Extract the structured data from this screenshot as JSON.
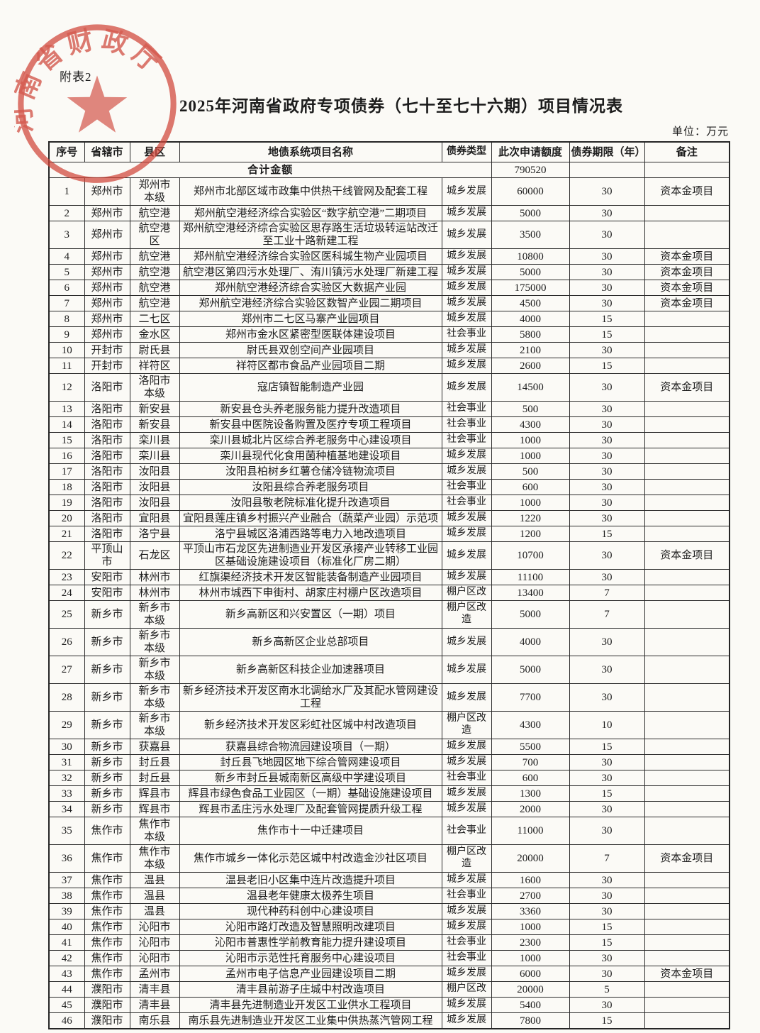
{
  "page": {
    "attachment_label": "附表2",
    "title": "2025年河南省政府专项债券（七十至七十六期）项目情况表",
    "unit_label": "单位：万元"
  },
  "seal": {
    "text": "河南省财政厅",
    "color": "#cf4438"
  },
  "table": {
    "columns": [
      "序号",
      "省辖市",
      "县区",
      "地债系统项目名称",
      "债券类型",
      "此次申请额度",
      "债券期限（年）",
      "备注"
    ],
    "total": {
      "label": "合计金额",
      "amount": "790520"
    },
    "rows": [
      [
        "1",
        "郑州市",
        "郑州市本级",
        "郑州市北部区域市政集中供热干线管网及配套工程",
        "城乡发展",
        "60000",
        "30",
        "资本金项目"
      ],
      [
        "2",
        "郑州市",
        "航空港",
        "郑州航空港经济综合实验区“数字航空港”二期项目",
        "城乡发展",
        "5000",
        "30",
        ""
      ],
      [
        "3",
        "郑州市",
        "航空港区",
        "郑州航空港经济综合实验区思存路生活垃圾转运站改迁至工业十路新建工程",
        "城乡发展",
        "3500",
        "30",
        ""
      ],
      [
        "4",
        "郑州市",
        "航空港",
        "郑州航空港经济综合实验区医科城生物产业园项目",
        "城乡发展",
        "10800",
        "30",
        "资本金项目"
      ],
      [
        "5",
        "郑州市",
        "航空港",
        "航空港区第四污水处理厂、洧川镇污水处理厂新建工程",
        "城乡发展",
        "5000",
        "30",
        "资本金项目"
      ],
      [
        "6",
        "郑州市",
        "航空港",
        "郑州航空港经济综合实验区大数据产业园",
        "城乡发展",
        "175000",
        "30",
        "资本金项目"
      ],
      [
        "7",
        "郑州市",
        "航空港",
        "郑州航空港经济综合实验区数智产业园二期项目",
        "城乡发展",
        "4500",
        "30",
        "资本金项目"
      ],
      [
        "8",
        "郑州市",
        "二七区",
        "郑州市二七区马寨产业园项目",
        "城乡发展",
        "4000",
        "15",
        ""
      ],
      [
        "9",
        "郑州市",
        "金水区",
        "郑州市金水区紧密型医联体建设项目",
        "社会事业",
        "5800",
        "15",
        ""
      ],
      [
        "10",
        "开封市",
        "尉氏县",
        "尉氏县双创空间产业园项目",
        "城乡发展",
        "2100",
        "30",
        ""
      ],
      [
        "11",
        "开封市",
        "祥符区",
        "祥符区都市食品产业园项目二期",
        "城乡发展",
        "2600",
        "15",
        ""
      ],
      [
        "12",
        "洛阳市",
        "洛阳市本级",
        "寇店镇智能制造产业园",
        "城乡发展",
        "14500",
        "30",
        "资本金项目"
      ],
      [
        "13",
        "洛阳市",
        "新安县",
        "新安县仓头养老服务能力提升改造项目",
        "社会事业",
        "500",
        "30",
        ""
      ],
      [
        "14",
        "洛阳市",
        "新安县",
        "新安县中医院设备购置及医疗专项工程项目",
        "社会事业",
        "4300",
        "30",
        ""
      ],
      [
        "15",
        "洛阳市",
        "栾川县",
        "栾川县城北片区综合养老服务中心建设项目",
        "社会事业",
        "1000",
        "30",
        ""
      ],
      [
        "16",
        "洛阳市",
        "栾川县",
        "栾川县现代化食用菌种植基地建设项目",
        "城乡发展",
        "1000",
        "30",
        ""
      ],
      [
        "17",
        "洛阳市",
        "汝阳县",
        "汝阳县柏树乡红薯仓储冷链物流项目",
        "城乡发展",
        "500",
        "30",
        ""
      ],
      [
        "18",
        "洛阳市",
        "汝阳县",
        "汝阳县综合养老服务项目",
        "社会事业",
        "600",
        "30",
        ""
      ],
      [
        "19",
        "洛阳市",
        "汝阳县",
        "汝阳县敬老院标准化提升改造项目",
        "社会事业",
        "1000",
        "30",
        ""
      ],
      [
        "20",
        "洛阳市",
        "宜阳县",
        "宜阳县莲庄镇乡村振兴产业融合（蔬菜产业园）示范项",
        "城乡发展",
        "1220",
        "30",
        ""
      ],
      [
        "21",
        "洛阳市",
        "洛宁县",
        "洛宁县城区洛浦西路等电力入地改造项目",
        "城乡发展",
        "1200",
        "15",
        ""
      ],
      [
        "22",
        "平顶山市",
        "石龙区",
        "平顶山市石龙区先进制造业开发区承接产业转移工业园区基础设施建设项目（标准化厂房二期）",
        "城乡发展",
        "10700",
        "30",
        "资本金项目"
      ],
      [
        "23",
        "安阳市",
        "林州市",
        "红旗渠经济技术开发区智能装备制造产业园项目",
        "城乡发展",
        "11100",
        "30",
        ""
      ],
      [
        "24",
        "安阳市",
        "林州市",
        "林州市城西下申街村、胡家庄村棚户区改造项目",
        "棚户区改",
        "13400",
        "7",
        ""
      ],
      [
        "25",
        "新乡市",
        "新乡市本级",
        "新乡高新区和兴安置区（一期）项目",
        "棚户区改造",
        "5000",
        "7",
        ""
      ],
      [
        "26",
        "新乡市",
        "新乡市本级",
        "新乡高新区企业总部项目",
        "城乡发展",
        "4000",
        "30",
        ""
      ],
      [
        "27",
        "新乡市",
        "新乡市本级",
        "新乡高新区科技企业加速器项目",
        "城乡发展",
        "5000",
        "30",
        ""
      ],
      [
        "28",
        "新乡市",
        "新乡市本级",
        "新乡经济技术开发区南水北调给水厂及其配水管网建设工程",
        "城乡发展",
        "7700",
        "30",
        ""
      ],
      [
        "29",
        "新乡市",
        "新乡市本级",
        "新乡经济技术开发区彩虹社区城中村改造项目",
        "棚户区改造",
        "4300",
        "10",
        ""
      ],
      [
        "30",
        "新乡市",
        "获嘉县",
        "获嘉县综合物流园建设项目（一期）",
        "城乡发展",
        "5500",
        "15",
        ""
      ],
      [
        "31",
        "新乡市",
        "封丘县",
        "封丘县飞地园区地下综合管网建设项目",
        "城乡发展",
        "700",
        "30",
        ""
      ],
      [
        "32",
        "新乡市",
        "封丘县",
        "新乡市封丘县城南新区高级中学建设项目",
        "社会事业",
        "600",
        "30",
        ""
      ],
      [
        "33",
        "新乡市",
        "辉县市",
        "辉县市绿色食品工业园区（一期）基础设施建设项目",
        "城乡发展",
        "1300",
        "15",
        ""
      ],
      [
        "34",
        "新乡市",
        "辉县市",
        "辉县市孟庄污水处理厂及配套管网提质升级工程",
        "城乡发展",
        "2000",
        "30",
        ""
      ],
      [
        "35",
        "焦作市",
        "焦作市本级",
        "焦作市十一中迁建项目",
        "社会事业",
        "11000",
        "30",
        ""
      ],
      [
        "36",
        "焦作市",
        "焦作市本级",
        "焦作市城乡一体化示范区城中村改造金沙社区项目",
        "棚户区改造",
        "20000",
        "7",
        "资本金项目"
      ],
      [
        "37",
        "焦作市",
        "温县",
        "温县老旧小区集中连片改造提升项目",
        "城乡发展",
        "1600",
        "30",
        ""
      ],
      [
        "38",
        "焦作市",
        "温县",
        "温县老年健康太极养生项目",
        "社会事业",
        "2700",
        "30",
        ""
      ],
      [
        "39",
        "焦作市",
        "温县",
        "现代种药科创中心建设项目",
        "城乡发展",
        "3360",
        "30",
        ""
      ],
      [
        "40",
        "焦作市",
        "沁阳市",
        "沁阳市路灯改造及智慧照明改建项目",
        "城乡发展",
        "1000",
        "15",
        ""
      ],
      [
        "41",
        "焦作市",
        "沁阳市",
        "沁阳市普惠性学前教育能力提升建设项目",
        "社会事业",
        "2300",
        "15",
        ""
      ],
      [
        "42",
        "焦作市",
        "沁阳市",
        "沁阳市示范性托育服务中心建设项目",
        "社会事业",
        "1000",
        "30",
        ""
      ],
      [
        "43",
        "焦作市",
        "孟州市",
        "孟州市电子信息产业园建设项目二期",
        "城乡发展",
        "6000",
        "30",
        "资本金项目"
      ],
      [
        "44",
        "濮阳市",
        "清丰县",
        "清丰县前游子庄城中村改造项目",
        "棚户区改",
        "20000",
        "5",
        ""
      ],
      [
        "45",
        "濮阳市",
        "清丰县",
        "清丰县先进制造业开发区工业供水工程项目",
        "城乡发展",
        "5400",
        "30",
        ""
      ],
      [
        "46",
        "濮阳市",
        "南乐县",
        "南乐县先进制造业开发区工业集中供热蒸汽管网工程",
        "城乡发展",
        "7800",
        "15",
        ""
      ]
    ]
  }
}
